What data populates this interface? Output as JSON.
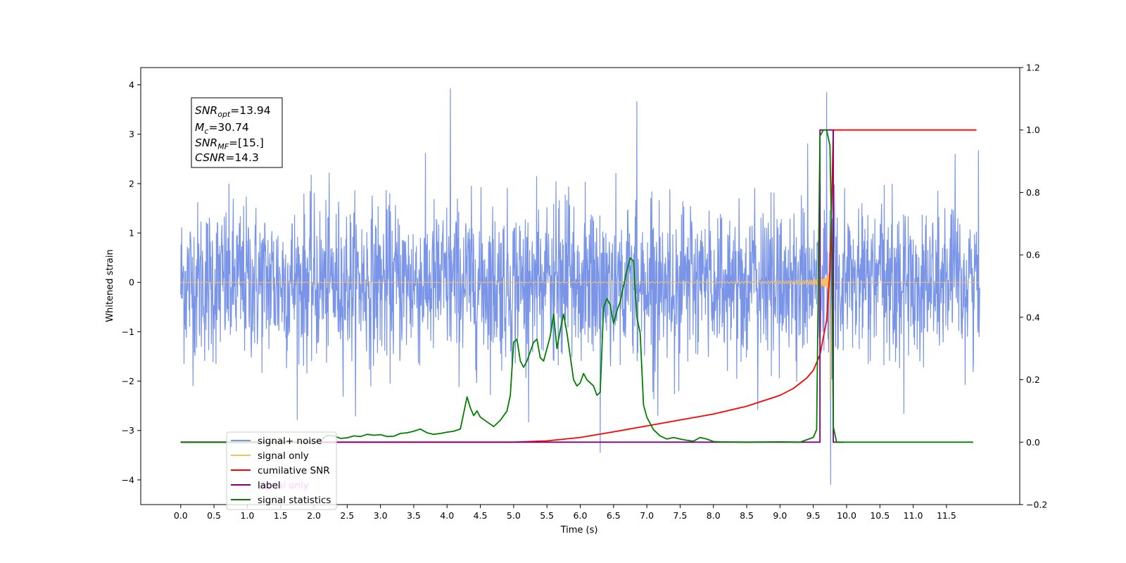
{
  "chart_data": {
    "type": "line",
    "title": "",
    "xlabel": "Time (s)",
    "ylabel": "Whitened strain",
    "y2label": "",
    "xlim": [
      -0.6,
      12.6
    ],
    "ylim": [
      -4.5,
      4.35
    ],
    "y2lim": [
      -0.2,
      1.2
    ],
    "x_ticks": [
      "0.0",
      "0.5",
      "1.0",
      "1.5",
      "2.0",
      "2.5",
      "3.0",
      "3.5",
      "4.0",
      "4.5",
      "5.0",
      "5.5",
      "6.0",
      "6.5",
      "7.0",
      "7.5",
      "8.0",
      "8.5",
      "9.0",
      "9.5",
      "10.0",
      "10.5",
      "11.0",
      "11.5"
    ],
    "y_ticks": [
      "4",
      "3",
      "2",
      "1",
      "0",
      "−1",
      "−2",
      "−3",
      "−4"
    ],
    "y2_ticks": [
      "1.2",
      "1.0",
      "0.8",
      "0.6",
      "0.4",
      "0.2",
      "0.0",
      "−0.2"
    ],
    "grid": false,
    "legend_position": "lower-left",
    "stats_box": {
      "snr_opt": {
        "symbol": "SNR",
        "sub": "opt",
        "value": "=13.94"
      },
      "mc": {
        "symbol": "M",
        "sub": "c",
        "value": "=30.74"
      },
      "snr_mf": {
        "symbol": "SNR",
        "sub": "MF",
        "value": "=[15.]"
      },
      "csnr": {
        "symbol": "CSNR",
        "value": "=14.3"
      }
    },
    "series": [
      {
        "name": "signal+ noise",
        "color": "#7a95e8",
        "axis": "left",
        "description": "whitened noisy strain, approx. Gaussian noise std 0.8 from t=0 to 12 s",
        "approx_range": [
          -4.1,
          3.95
        ],
        "notable_peaks": [
          [
            4.05,
            3.93
          ],
          [
            6.85,
            3.67
          ],
          [
            9.7,
            3.85
          ],
          [
            9.76,
            -4.1
          ],
          [
            6.3,
            -3.45
          ]
        ]
      },
      {
        "name": "signal only",
        "color": "#f5c167",
        "axis": "left",
        "description": "chirp waveform, amplitude growing toward merger near t=9.75 s",
        "peak_amplitude": 2.7,
        "merger_time": 9.75
      },
      {
        "name": "cumilative SNR",
        "color": "#ff0000",
        "axis": "right",
        "x": [
          0.0,
          5.0,
          5.5,
          6.0,
          6.5,
          7.0,
          7.5,
          8.0,
          8.5,
          9.0,
          9.2,
          9.4,
          9.5,
          9.6,
          9.7,
          9.75,
          9.78,
          9.8,
          11.5,
          11.95
        ],
        "y": [
          0.0,
          0.0,
          0.004,
          0.015,
          0.033,
          0.052,
          0.071,
          0.09,
          0.115,
          0.15,
          0.172,
          0.205,
          0.23,
          0.28,
          0.39,
          0.55,
          0.8,
          1.0,
          1.0,
          1.0
        ]
      },
      {
        "name": "label",
        "color": "#800080",
        "axis": "right",
        "x": [
          0.0,
          9.6,
          9.6,
          9.8,
          9.8,
          9.95
        ],
        "y": [
          0.0,
          0.0,
          1.0,
          1.0,
          0.0,
          0.0
        ]
      },
      {
        "name": "signal only",
        "color": "#ffb0ff",
        "axis": "right",
        "description": "legend entry only (drawn behind green line)"
      },
      {
        "name": "signal statistics",
        "color": "#008000",
        "axis": "right",
        "x": [
          0.0,
          2.0,
          2.1,
          2.2,
          2.3,
          2.4,
          2.5,
          2.6,
          2.7,
          2.8,
          2.9,
          3.0,
          3.1,
          3.2,
          3.3,
          3.4,
          3.5,
          3.6,
          3.7,
          3.8,
          3.9,
          4.0,
          4.1,
          4.2,
          4.3,
          4.35,
          4.4,
          4.45,
          4.5,
          4.6,
          4.7,
          4.8,
          4.9,
          4.95,
          5.0,
          5.05,
          5.1,
          5.15,
          5.2,
          5.3,
          5.35,
          5.4,
          5.45,
          5.5,
          5.55,
          5.6,
          5.65,
          5.7,
          5.75,
          5.8,
          5.9,
          5.95,
          6.0,
          6.05,
          6.1,
          6.2,
          6.25,
          6.3,
          6.35,
          6.4,
          6.45,
          6.5,
          6.55,
          6.6,
          6.7,
          6.75,
          6.8,
          6.85,
          6.9,
          6.95,
          7.0,
          7.05,
          7.1,
          7.2,
          7.3,
          7.4,
          7.5,
          7.6,
          7.7,
          7.8,
          7.9,
          8.0,
          8.1,
          8.5,
          9.0,
          9.3,
          9.5,
          9.55,
          9.6,
          9.65,
          9.7,
          9.75,
          9.78,
          9.8,
          9.85,
          11.9
        ],
        "y": [
          0.0,
          0.0,
          0.006,
          0.022,
          0.02,
          0.012,
          0.014,
          0.02,
          0.018,
          0.025,
          0.022,
          0.024,
          0.018,
          0.019,
          0.028,
          0.03,
          0.035,
          0.042,
          0.03,
          0.025,
          0.028,
          0.032,
          0.035,
          0.042,
          0.145,
          0.11,
          0.085,
          0.1,
          0.08,
          0.065,
          0.05,
          0.07,
          0.1,
          0.15,
          0.32,
          0.33,
          0.26,
          0.24,
          0.26,
          0.32,
          0.33,
          0.27,
          0.26,
          0.3,
          0.34,
          0.41,
          0.3,
          0.36,
          0.41,
          0.35,
          0.2,
          0.18,
          0.19,
          0.22,
          0.2,
          0.18,
          0.15,
          0.16,
          0.43,
          0.46,
          0.44,
          0.38,
          0.42,
          0.45,
          0.55,
          0.59,
          0.58,
          0.4,
          0.35,
          0.12,
          0.08,
          0.06,
          0.04,
          0.02,
          0.01,
          0.015,
          0.01,
          0.006,
          0.003,
          0.015,
          0.01,
          0.002,
          0.001,
          0.0,
          0.001,
          0.0,
          0.015,
          0.04,
          0.98,
          1.0,
          1.0,
          0.95,
          0.6,
          0.05,
          0.0,
          0.0
        ]
      }
    ]
  }
}
